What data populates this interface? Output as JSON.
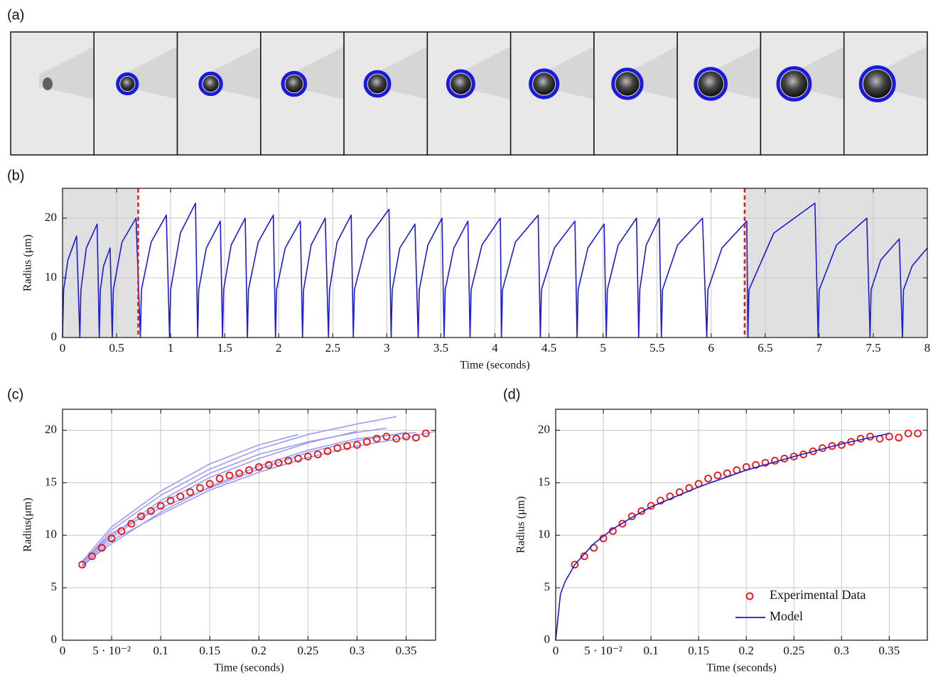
{
  "panel_labels": [
    "(a)",
    "(b)",
    "(c)",
    "(d)"
  ],
  "chart_data": [
    {
      "type": "line",
      "xlabel": "Time (seconds)",
      "ylabel": "Radius (μm)",
      "xlim": [
        0,
        8
      ],
      "ylim": [
        0,
        25
      ],
      "xticks": [
        0,
        0.5,
        1,
        1.5,
        2,
        2.5,
        3,
        3.5,
        4,
        4.5,
        5,
        5.5,
        6,
        6.5,
        7,
        7.5,
        8
      ],
      "yticks": [
        0,
        10,
        20
      ],
      "grid": true,
      "shaded_regions": [
        [
          0,
          0.7
        ],
        [
          6.31,
          8
        ]
      ],
      "shade_color": "#e0e0e0",
      "vlines": [
        0.7,
        6.31
      ],
      "vline_color": "#e02020",
      "series": [
        {
          "type": "line",
          "color": "#1a1adb",
          "x": [
            0,
            0.01,
            0.05,
            0.13,
            0.16,
            0.17,
            0.22,
            0.32,
            0.34,
            0.35,
            0.38,
            0.44,
            0.46,
            0.47,
            0.55,
            0.68,
            0.72,
            0.73,
            0.82,
            0.96,
            0.99,
            1.0,
            1.09,
            1.23,
            1.25,
            1.26,
            1.33,
            1.46,
            1.48,
            1.49,
            1.56,
            1.69,
            1.71,
            1.72,
            1.81,
            1.95,
            1.97,
            1.98,
            2.06,
            2.2,
            2.22,
            2.23,
            2.3,
            2.43,
            2.46,
            2.47,
            2.54,
            2.67,
            2.69,
            2.7,
            2.82,
            3.02,
            3.04,
            3.05,
            3.12,
            3.26,
            3.29,
            3.3,
            3.38,
            3.51,
            3.53,
            3.54,
            3.62,
            3.75,
            3.77,
            3.78,
            3.88,
            4.05,
            4.06,
            4.07,
            4.19,
            4.4,
            4.42,
            4.43,
            4.55,
            4.74,
            4.76,
            4.77,
            4.86,
            5.01,
            5.03,
            5.04,
            5.14,
            5.31,
            5.33,
            5.34,
            5.4,
            5.52,
            5.54,
            5.55,
            5.69,
            5.92,
            5.96,
            5.97,
            6.1,
            6.33,
            6.34,
            6.35,
            6.58,
            6.96,
            6.99,
            7.0,
            7.16,
            7.44,
            7.47,
            7.48,
            7.57,
            7.74,
            7.77,
            7.78,
            7.86,
            8.0
          ],
          "values": [
            0,
            8,
            13,
            17,
            0,
            8,
            15,
            19,
            0,
            8,
            12,
            15,
            0,
            8,
            16,
            20,
            0,
            8,
            16,
            20.5,
            0,
            8,
            17.5,
            22.5,
            0,
            8,
            15,
            19.5,
            0,
            8,
            15.5,
            20,
            0,
            8,
            16,
            20.5,
            0,
            8,
            15,
            19.5,
            0,
            8,
            15.5,
            20,
            0,
            8,
            16,
            20.5,
            0,
            8,
            16.5,
            21.5,
            0,
            8,
            15,
            19,
            0,
            8,
            15.5,
            20,
            0,
            8,
            15,
            19.5,
            0,
            8,
            15.5,
            20,
            0,
            8,
            16,
            20.5,
            0,
            8,
            15,
            19.5,
            0,
            8,
            15,
            19,
            0,
            8,
            15.5,
            20,
            0,
            8,
            15.5,
            20,
            0,
            8,
            15.5,
            20,
            0,
            8,
            15,
            19.5,
            0,
            8,
            17.5,
            22.5,
            0,
            8,
            15.5,
            20,
            0,
            8,
            13,
            16.5,
            0,
            8,
            12,
            15
          ]
        }
      ]
    },
    {
      "type": "scatter",
      "xlabel": "Time (seconds)",
      "ylabel": "Radius(μm)",
      "xlim": [
        0,
        0.38
      ],
      "ylim": [
        0,
        22
      ],
      "xticks": [
        0,
        {
          "value": 0.05,
          "label": "5 · 10⁻²"
        },
        0.1,
        0.15,
        0.2,
        0.25,
        0.3,
        0.35
      ],
      "yticks": [
        0,
        5,
        10,
        15,
        20
      ],
      "grid": true,
      "series": [
        {
          "type": "line",
          "color": "#9c9cf2",
          "x": [
            0.02,
            0.05,
            0.1,
            0.15,
            0.2,
            0.25,
            0.3,
            0.34
          ],
          "values": [
            7.3,
            10.5,
            13.8,
            16.3,
            18.2,
            19.6,
            20.6,
            21.3
          ]
        },
        {
          "type": "line",
          "color": "#9c9cf2",
          "x": [
            0.02,
            0.05,
            0.1,
            0.15,
            0.2,
            0.24
          ],
          "values": [
            7.5,
            10.8,
            14.2,
            16.8,
            18.6,
            19.6
          ]
        },
        {
          "type": "line",
          "color": "#9c9cf2",
          "x": [
            0.02,
            0.05,
            0.1,
            0.15,
            0.2,
            0.25,
            0.3,
            0.35,
            0.38
          ],
          "values": [
            7.0,
            9.5,
            12.0,
            14.3,
            16.0,
            17.4,
            18.5,
            19.3,
            19.9
          ]
        },
        {
          "type": "line",
          "color": "#9c9cf2",
          "x": [
            0.02,
            0.05,
            0.1,
            0.15,
            0.2,
            0.25,
            0.3,
            0.36
          ],
          "values": [
            7.2,
            9.2,
            12.2,
            14.6,
            16.6,
            18.1,
            19.2,
            19.8
          ]
        },
        {
          "type": "line",
          "color": "#9c9cf2",
          "x": [
            0.02,
            0.05,
            0.1,
            0.15,
            0.2,
            0.25,
            0.3
          ],
          "values": [
            7.1,
            9.8,
            13.0,
            15.5,
            17.3,
            18.8,
            19.9
          ]
        },
        {
          "type": "line",
          "color": "#9c9cf2",
          "x": [
            0.02,
            0.05,
            0.1,
            0.15,
            0.2,
            0.25,
            0.3,
            0.35
          ],
          "values": [
            7.4,
            10.2,
            12.6,
            14.5,
            16.3,
            17.9,
            19.0,
            19.8
          ]
        },
        {
          "type": "line",
          "color": "#9c9cf2",
          "x": [
            0.02,
            0.05,
            0.1,
            0.15,
            0.2,
            0.25,
            0.3,
            0.33
          ],
          "values": [
            7.3,
            10.0,
            13.3,
            15.9,
            17.7,
            18.9,
            19.8,
            20.2
          ]
        },
        {
          "type": "scatter",
          "color": "#ee1111",
          "x": [
            0.02,
            0.03,
            0.04,
            0.05,
            0.06,
            0.07,
            0.08,
            0.09,
            0.1,
            0.11,
            0.12,
            0.13,
            0.14,
            0.15,
            0.16,
            0.17,
            0.18,
            0.19,
            0.2,
            0.21,
            0.22,
            0.23,
            0.24,
            0.25,
            0.26,
            0.27,
            0.28,
            0.29,
            0.3,
            0.31,
            0.32,
            0.33,
            0.34,
            0.35,
            0.36,
            0.37
          ],
          "values": [
            7.2,
            8.0,
            8.8,
            9.7,
            10.4,
            11.1,
            11.8,
            12.3,
            12.8,
            13.3,
            13.7,
            14.1,
            14.5,
            14.9,
            15.4,
            15.7,
            15.9,
            16.2,
            16.5,
            16.7,
            16.9,
            17.1,
            17.3,
            17.5,
            17.7,
            18.0,
            18.3,
            18.5,
            18.6,
            18.9,
            19.2,
            19.4,
            19.2,
            19.4,
            19.3,
            19.7
          ]
        }
      ]
    },
    {
      "type": "scatter",
      "xlabel": "Time (seconds)",
      "ylabel": "Radius (μm)",
      "xlim": [
        0,
        0.39
      ],
      "ylim": [
        0,
        22
      ],
      "xticks": [
        0,
        {
          "value": 0.05,
          "label": "5 · 10⁻²"
        },
        0.1,
        0.15,
        0.2,
        0.25,
        0.3,
        0.35
      ],
      "yticks": [
        0,
        5,
        10,
        15,
        20
      ],
      "grid": true,
      "legend": "lower right",
      "series": [
        {
          "name": "Experimental Data",
          "type": "scatter",
          "color": "#ee1111",
          "x": [
            0.02,
            0.03,
            0.04,
            0.05,
            0.06,
            0.07,
            0.08,
            0.09,
            0.1,
            0.11,
            0.12,
            0.13,
            0.14,
            0.15,
            0.16,
            0.17,
            0.18,
            0.19,
            0.2,
            0.21,
            0.22,
            0.23,
            0.24,
            0.25,
            0.26,
            0.27,
            0.28,
            0.29,
            0.3,
            0.31,
            0.32,
            0.33,
            0.34,
            0.35,
            0.36,
            0.37,
            0.38
          ],
          "values": [
            7.2,
            8.0,
            8.8,
            9.7,
            10.4,
            11.1,
            11.8,
            12.3,
            12.8,
            13.3,
            13.7,
            14.1,
            14.5,
            14.9,
            15.4,
            15.7,
            15.9,
            16.2,
            16.5,
            16.7,
            16.9,
            17.1,
            17.3,
            17.5,
            17.7,
            18.0,
            18.3,
            18.5,
            18.6,
            18.9,
            19.2,
            19.4,
            19.2,
            19.4,
            19.3,
            19.7,
            19.7
          ]
        },
        {
          "name": "Model",
          "type": "line",
          "color": "#1a1acc",
          "x": [
            0,
            0.005,
            0.01,
            0.02,
            0.04,
            0.06,
            0.08,
            0.1,
            0.15,
            0.2,
            0.25,
            0.3,
            0.35
          ],
          "values": [
            0,
            4.4,
            5.6,
            7.2,
            9.2,
            10.6,
            11.7,
            12.7,
            14.6,
            16.2,
            17.5,
            18.7,
            19.7
          ]
        }
      ]
    }
  ]
}
